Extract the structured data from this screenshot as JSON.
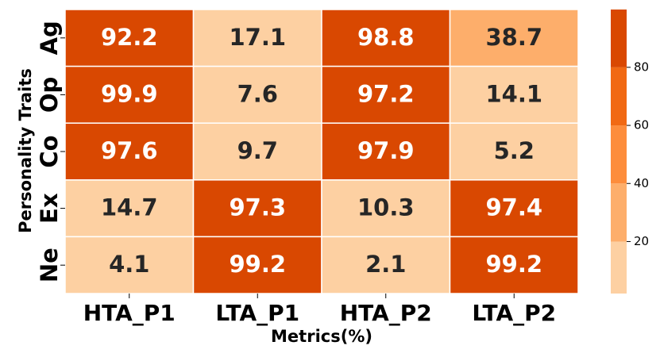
{
  "chart_data": {
    "type": "heatmap",
    "title": "",
    "xlabel": "Metrics(%)",
    "ylabel": "Personality Traits",
    "x_categories": [
      "HTA_P1",
      "LTA_P1",
      "HTA_P2",
      "LTA_P2"
    ],
    "y_categories": [
      "Ag",
      "Op",
      "Co",
      "Ex",
      "Ne"
    ],
    "values": [
      [
        92.2,
        17.1,
        98.8,
        38.7
      ],
      [
        99.9,
        7.6,
        97.2,
        14.1
      ],
      [
        97.6,
        9.7,
        97.9,
        5.2
      ],
      [
        14.7,
        97.3,
        10.3,
        97.4
      ],
      [
        4.1,
        99.2,
        2.1,
        99.2
      ]
    ],
    "colorbar": {
      "ticks": [
        20,
        40,
        60,
        80
      ],
      "vmin": 2.1,
      "vmax": 99.9,
      "bins": [
        {
          "upper": 20,
          "color": "#fdd0a2"
        },
        {
          "upper": 40,
          "color": "#fdae6b"
        },
        {
          "upper": 60,
          "color": "#fd8d3c"
        },
        {
          "upper": 80,
          "color": "#f16913"
        },
        {
          "upper": 100,
          "color": "#d94801"
        }
      ]
    },
    "grid": false,
    "legend": "colorbar-right"
  }
}
